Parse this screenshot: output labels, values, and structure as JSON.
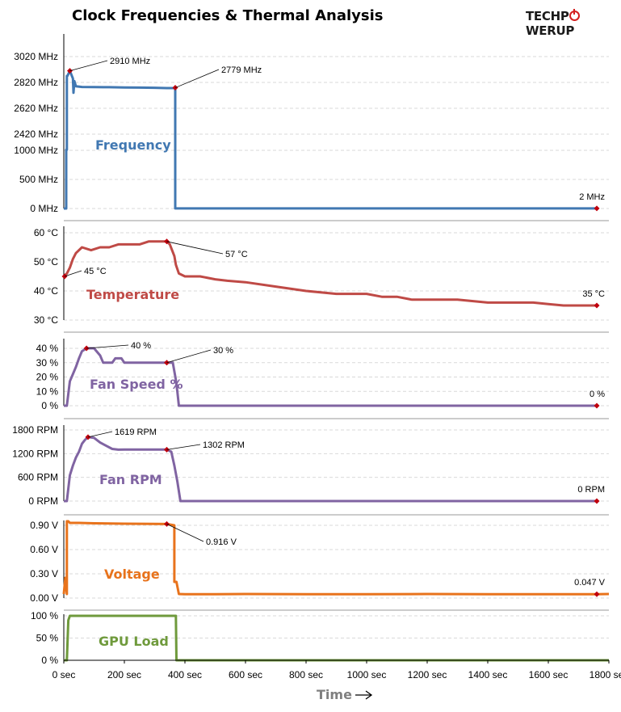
{
  "header": {
    "title": "Clock Frequencies & Thermal Analysis",
    "logo_left": "TECHP",
    "logo_right": "WERUP"
  },
  "x_axis": {
    "label": "Time",
    "ticks": [
      "0 sec",
      "200 sec",
      "400 sec",
      "600 sec",
      "800 sec",
      "1000 sec",
      "1200 sec",
      "1400 sec",
      "1600 sec",
      "1800 sec"
    ]
  },
  "colors": {
    "frequency": "#4178b2",
    "temperature": "#bf4a46",
    "fan": "#8064a2",
    "voltage": "#e8731c",
    "load": "#6f9a3c",
    "marker": "#c0000d",
    "grid": "#d9d9d9"
  },
  "chart_data": [
    {
      "type": "line",
      "name": "frequency",
      "label": "Frequency",
      "xlim": [
        0,
        1800
      ],
      "upper_ticks": [
        "2420 MHz",
        "2620 MHz",
        "2820 MHz",
        "3020 MHz"
      ],
      "lower_ticks": [
        "0 MHz",
        "500 MHz",
        "1000 MHz"
      ],
      "x": [
        0,
        8,
        10,
        12,
        20,
        25,
        30,
        32,
        35,
        40,
        60,
        100,
        150,
        200,
        250,
        300,
        340,
        365,
        368,
        372,
        400,
        500,
        600,
        800,
        1000,
        1200,
        1400,
        1600,
        1760
      ],
      "y": [
        0,
        0,
        2300,
        2870,
        2910,
        2880,
        2850,
        2740,
        2830,
        2790,
        2785,
        2784,
        2783,
        2781,
        2780,
        2779,
        2776,
        2777,
        2779,
        2,
        2,
        2,
        2,
        2,
        2,
        2,
        2,
        2,
        2
      ],
      "annotations": [
        {
          "text": "2910 MHz",
          "x": 20,
          "y": 2910
        },
        {
          "text": "2779 MHz",
          "x": 368,
          "y": 2779
        },
        {
          "text": "2 MHz",
          "x": 1760,
          "y": 2
        }
      ]
    },
    {
      "type": "line",
      "name": "temperature",
      "label": "Temperature",
      "xlim": [
        0,
        1800
      ],
      "ylim": [
        30,
        62
      ],
      "ticks": [
        "30 °C",
        "40 °C",
        "50 °C",
        "60 °C"
      ],
      "x": [
        0,
        10,
        20,
        30,
        40,
        60,
        90,
        120,
        150,
        180,
        210,
        250,
        280,
        300,
        320,
        340,
        350,
        365,
        370,
        380,
        400,
        450,
        500,
        540,
        600,
        700,
        800,
        900,
        1000,
        1050,
        1100,
        1150,
        1200,
        1300,
        1400,
        1500,
        1550,
        1600,
        1650,
        1700,
        1760
      ],
      "y": [
        45,
        46,
        48,
        51,
        53,
        55,
        54,
        55,
        55,
        56,
        56,
        56,
        57,
        57,
        57,
        57,
        56,
        52,
        49,
        46,
        45,
        45,
        44,
        43.5,
        43,
        41.5,
        40,
        39,
        39,
        38,
        38,
        37,
        37,
        37,
        36,
        36,
        36,
        35.5,
        35,
        35,
        35
      ],
      "annotations": [
        {
          "text": "45 °C",
          "x": 0,
          "y": 45
        },
        {
          "text": "57 °C",
          "x": 340,
          "y": 57
        },
        {
          "text": "35 °C",
          "x": 1760,
          "y": 35
        }
      ]
    },
    {
      "type": "line",
      "name": "fan_speed",
      "label": "Fan Speed %",
      "xlim": [
        0,
        1800
      ],
      "ylim": [
        0,
        40
      ],
      "ticks": [
        "0 %",
        "10 %",
        "20 %",
        "30 %",
        "40 %"
      ],
      "x": [
        0,
        10,
        20,
        30,
        40,
        50,
        60,
        75,
        80,
        100,
        120,
        130,
        160,
        170,
        190,
        200,
        230,
        250,
        280,
        300,
        340,
        360,
        370,
        375,
        380,
        1760
      ],
      "y": [
        0,
        0,
        17,
        22,
        27,
        33,
        38,
        40,
        40,
        40,
        35,
        30,
        30,
        33,
        33,
        30,
        30,
        30,
        30,
        30,
        30,
        30,
        18,
        10,
        0,
        0
      ],
      "annotations": [
        {
          "text": "40 %",
          "x": 75,
          "y": 40
        },
        {
          "text": "30 %",
          "x": 340,
          "y": 30
        },
        {
          "text": "0 %",
          "x": 1760,
          "y": 0
        }
      ]
    },
    {
      "type": "line",
      "name": "fan_rpm",
      "label": "Fan RPM",
      "xlim": [
        0,
        1800
      ],
      "ylim": [
        0,
        2000
      ],
      "ticks": [
        "0 RPM",
        "600 RPM",
        "1200 RPM",
        "1800 RPM"
      ],
      "x": [
        0,
        10,
        20,
        30,
        40,
        50,
        60,
        70,
        80,
        100,
        120,
        140,
        160,
        180,
        200,
        250,
        300,
        340,
        355,
        365,
        375,
        385,
        1760
      ],
      "y": [
        0,
        0,
        650,
        900,
        1100,
        1250,
        1450,
        1550,
        1619,
        1600,
        1480,
        1400,
        1320,
        1300,
        1302,
        1302,
        1302,
        1302,
        1250,
        900,
        500,
        0,
        0
      ],
      "annotations": [
        {
          "text": "1619 RPM",
          "x": 80,
          "y": 1619
        },
        {
          "text": "1302 RPM",
          "x": 340,
          "y": 1302
        },
        {
          "text": "0 RPM",
          "x": 1760,
          "y": 0
        }
      ]
    },
    {
      "type": "line",
      "name": "voltage",
      "label": "Voltage",
      "xlim": [
        0,
        1800
      ],
      "ylim": [
        0,
        1.0
      ],
      "ticks": [
        "0.00 V",
        "0.30 V",
        "0.60 V",
        "0.90 V"
      ],
      "x": [
        0,
        5,
        10,
        15,
        20,
        50,
        100,
        200,
        300,
        340,
        365,
        372,
        380,
        400,
        500,
        600,
        800,
        1000,
        1200,
        1400,
        1600,
        1760,
        1800
      ],
      "y": [
        0.05,
        0.25,
        0.05,
        0.95,
        0.93,
        0.93,
        0.925,
        0.92,
        0.918,
        0.916,
        0.9,
        0.2,
        0.05,
        0.047,
        0.047,
        0.05,
        0.047,
        0.047,
        0.05,
        0.047,
        0.047,
        0.047,
        0.05
      ],
      "annotations": [
        {
          "text": "0.916 V",
          "x": 340,
          "y": 0.916
        },
        {
          "text": "0.047 V",
          "x": 1760,
          "y": 0.047
        }
      ]
    },
    {
      "type": "line",
      "name": "gpu_load",
      "label": "GPU Load",
      "xlim": [
        0,
        1800
      ],
      "ylim": [
        0,
        100
      ],
      "ticks": [
        "0 %",
        "50 %",
        "100 %"
      ],
      "x": [
        0,
        10,
        15,
        20,
        40,
        370,
        372,
        1800
      ],
      "y": [
        0,
        0,
        90,
        100,
        100,
        100,
        0,
        0
      ]
    }
  ]
}
